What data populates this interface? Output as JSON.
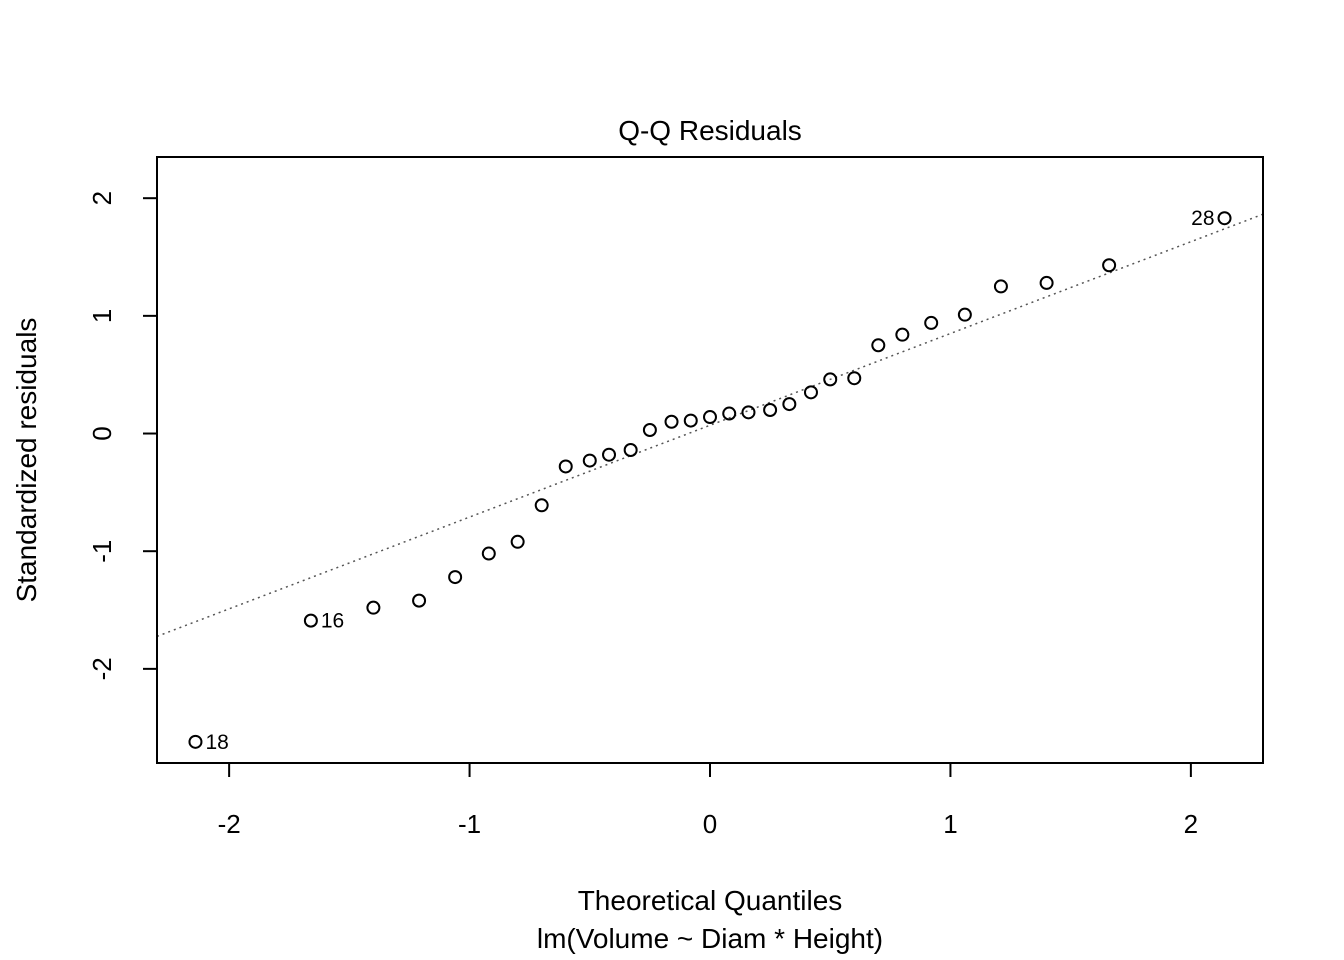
{
  "chart_data": {
    "type": "scatter",
    "title": "Q-Q Residuals",
    "xlabel": "Theoretical Quantiles",
    "subtitle": "lm(Volume ~ Diam * Height)",
    "ylabel": "Standardized residuals",
    "xlim": [
      -2.3,
      2.3
    ],
    "ylim": [
      -2.8,
      2.35
    ],
    "xticks": [
      -2,
      -1,
      0,
      1,
      2
    ],
    "xtick_labels": [
      "-2",
      "-1",
      "0",
      "1",
      "2"
    ],
    "yticks": [
      -2,
      -1,
      0,
      1,
      2
    ],
    "ytick_labels": [
      "-2",
      "-1",
      "0",
      "1",
      "2"
    ],
    "grid": false,
    "reference_line": {
      "intercept": 0.07,
      "slope": 0.78,
      "style": "dotted",
      "color": "#555555"
    },
    "points": [
      {
        "x": -2.14,
        "y": -2.62,
        "label": "18"
      },
      {
        "x": -1.66,
        "y": -1.59,
        "label": "16"
      },
      {
        "x": -1.4,
        "y": -1.48,
        "label": ""
      },
      {
        "x": -1.21,
        "y": -1.42,
        "label": ""
      },
      {
        "x": -1.06,
        "y": -1.22,
        "label": ""
      },
      {
        "x": -0.92,
        "y": -1.02,
        "label": ""
      },
      {
        "x": -0.8,
        "y": -0.92,
        "label": ""
      },
      {
        "x": -0.7,
        "y": -0.61,
        "label": ""
      },
      {
        "x": -0.6,
        "y": -0.28,
        "label": ""
      },
      {
        "x": -0.5,
        "y": -0.23,
        "label": ""
      },
      {
        "x": -0.42,
        "y": -0.18,
        "label": ""
      },
      {
        "x": -0.33,
        "y": -0.14,
        "label": ""
      },
      {
        "x": -0.25,
        "y": 0.03,
        "label": ""
      },
      {
        "x": -0.16,
        "y": 0.1,
        "label": ""
      },
      {
        "x": -0.08,
        "y": 0.11,
        "label": ""
      },
      {
        "x": 0.0,
        "y": 0.14,
        "label": ""
      },
      {
        "x": 0.08,
        "y": 0.17,
        "label": ""
      },
      {
        "x": 0.16,
        "y": 0.18,
        "label": ""
      },
      {
        "x": 0.25,
        "y": 0.2,
        "label": ""
      },
      {
        "x": 0.33,
        "y": 0.25,
        "label": ""
      },
      {
        "x": 0.42,
        "y": 0.35,
        "label": ""
      },
      {
        "x": 0.5,
        "y": 0.46,
        "label": ""
      },
      {
        "x": 0.6,
        "y": 0.47,
        "label": ""
      },
      {
        "x": 0.7,
        "y": 0.75,
        "label": ""
      },
      {
        "x": 0.8,
        "y": 0.84,
        "label": ""
      },
      {
        "x": 0.92,
        "y": 0.94,
        "label": ""
      },
      {
        "x": 1.06,
        "y": 1.01,
        "label": ""
      },
      {
        "x": 1.21,
        "y": 1.25,
        "label": ""
      },
      {
        "x": 1.4,
        "y": 1.28,
        "label": ""
      },
      {
        "x": 1.66,
        "y": 1.43,
        "label": ""
      },
      {
        "x": 2.14,
        "y": 1.83,
        "label": "28"
      }
    ]
  }
}
